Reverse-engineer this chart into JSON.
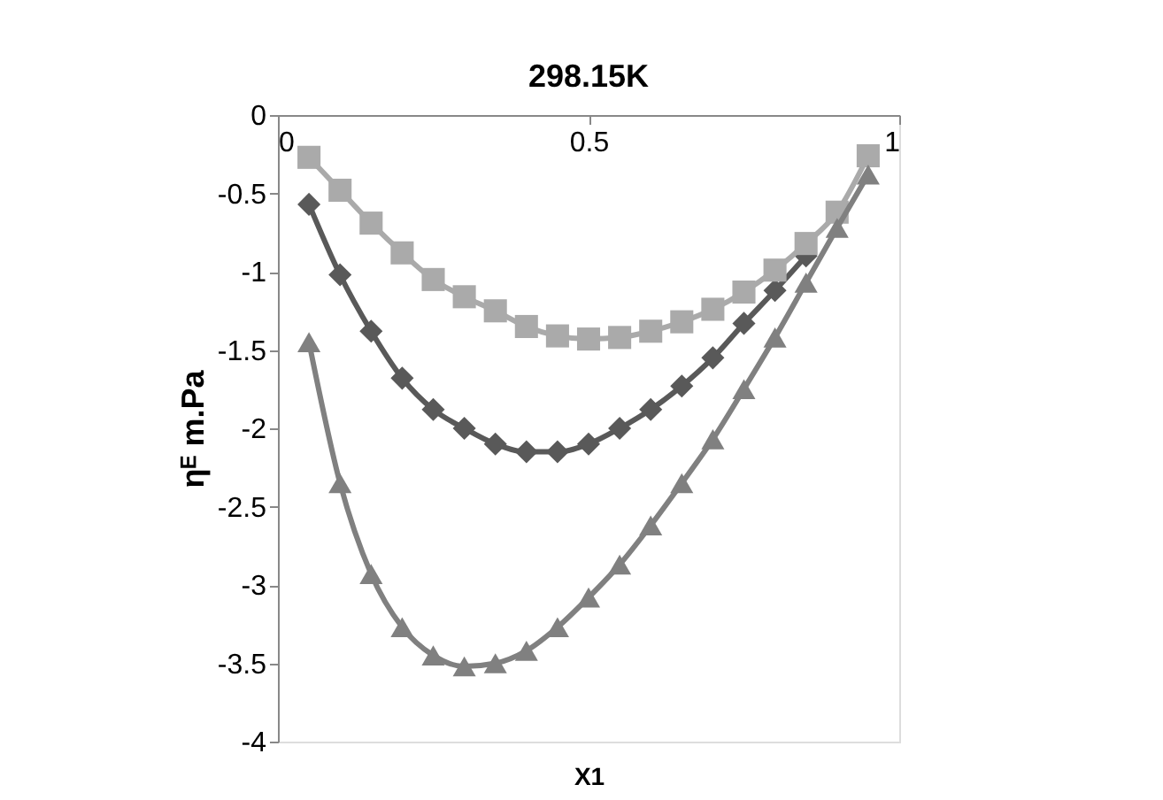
{
  "chart_data": {
    "type": "line",
    "title": "298.15K",
    "xlabel": "X1",
    "ylabel": "ηᴱ m.Pa",
    "x": [
      0.05,
      0.1,
      0.15,
      0.2,
      0.25,
      0.3,
      0.35,
      0.4,
      0.45,
      0.5,
      0.55,
      0.6,
      0.65,
      0.7,
      0.75,
      0.8,
      0.85,
      0.9,
      0.95
    ],
    "series": [
      {
        "color": "#595959",
        "marker": "diamond",
        "values": [
          -0.57,
          -1.02,
          -1.38,
          -1.68,
          -1.88,
          -2.0,
          -2.1,
          -2.15,
          -2.15,
          -2.1,
          -2.0,
          -1.88,
          -1.73,
          -1.55,
          -1.33,
          -1.12,
          -0.9,
          null,
          null
        ]
      },
      {
        "color": "#aaaaaa",
        "marker": "square",
        "values": [
          -0.27,
          -0.48,
          -0.69,
          -0.88,
          -1.05,
          -1.16,
          -1.25,
          -1.35,
          -1.41,
          -1.43,
          -1.42,
          -1.38,
          -1.32,
          -1.24,
          -1.13,
          -0.99,
          -0.82,
          -0.62,
          -0.26
        ]
      },
      {
        "color": "#808080",
        "marker": "triangle",
        "values": [
          -1.45,
          -2.35,
          -2.93,
          -3.27,
          -3.45,
          -3.52,
          -3.5,
          -3.42,
          -3.27,
          -3.08,
          -2.87,
          -2.62,
          -2.35,
          -2.07,
          -1.75,
          -1.42,
          -1.07,
          -0.72,
          -0.38
        ]
      }
    ],
    "xlim": [
      0,
      1
    ],
    "xticks": [
      0,
      0.5,
      1
    ],
    "ylim": [
      -4,
      0
    ],
    "yticks": [
      0,
      -0.5,
      -1,
      -1.5,
      -2,
      -2.5,
      -3,
      -3.5,
      -4
    ],
    "grid": false,
    "legend": false,
    "line_style": "solid"
  }
}
